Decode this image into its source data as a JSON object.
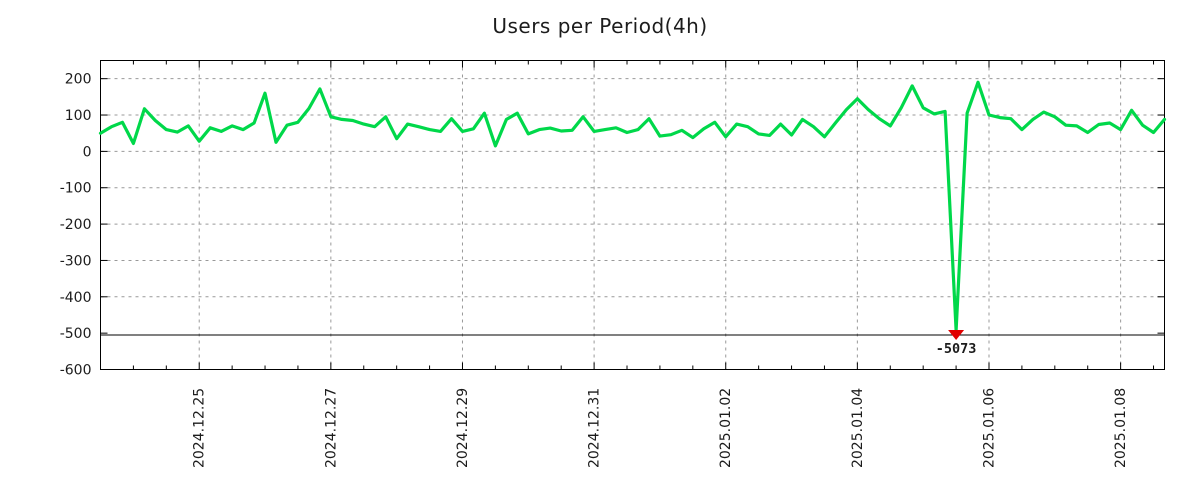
{
  "title": "Users per Period(4h)",
  "colors": {
    "series": "#00d84a",
    "min_marker": "#e10000",
    "annotation": "#00c94a",
    "grid": "#999999",
    "axis": "#000000",
    "text": "#1c1c1c",
    "background": "#ffffff"
  },
  "chart_data": {
    "type": "line",
    "title": "Users per Period(4h)",
    "xlabel": "",
    "ylabel": "",
    "legend": "none",
    "grid": "dashed",
    "x_start": "2024-12-23 12:00",
    "x_step_hours": 4,
    "values": [
      50,
      68,
      80,
      22,
      117,
      85,
      60,
      53,
      70,
      28,
      65,
      55,
      70,
      60,
      78,
      160,
      25,
      72,
      80,
      118,
      172,
      95,
      88,
      85,
      75,
      68,
      95,
      35,
      75,
      68,
      60,
      55,
      90,
      55,
      62,
      105,
      15,
      88,
      105,
      48,
      60,
      64,
      56,
      58,
      95,
      55,
      60,
      65,
      52,
      60,
      90,
      42,
      46,
      58,
      38,
      62,
      80,
      40,
      75,
      68,
      48,
      44,
      75,
      45,
      88,
      68,
      40,
      78,
      115,
      145,
      115,
      90,
      70,
      120,
      180,
      120,
      103,
      110,
      -5073,
      105,
      190,
      100,
      93,
      90,
      60,
      88,
      108,
      95,
      72,
      70,
      52,
      74,
      78,
      60,
      113,
      72,
      52,
      88
    ],
    "x_tick_labels": [
      "2024.12.25",
      "2024.12.27",
      "2024.12.29",
      "2024.12.31",
      "2025.01.02",
      "2025.01.04",
      "2025.01.06",
      "2025.01.08"
    ],
    "x_tick_point_indices": [
      9,
      21,
      33,
      45,
      57,
      69,
      81,
      93
    ],
    "x_minor_tick_every_points": 3,
    "y_ticks": [
      200,
      100,
      0,
      -100,
      -200,
      -300,
      -400,
      -500,
      -600
    ],
    "ylim": [
      -600,
      250
    ],
    "floor_line_value": -505,
    "clip_floor_value": -492,
    "min_annotation": {
      "text": "-5073",
      "value": -5073,
      "point_index": 78,
      "marker": "triangle-down"
    }
  }
}
